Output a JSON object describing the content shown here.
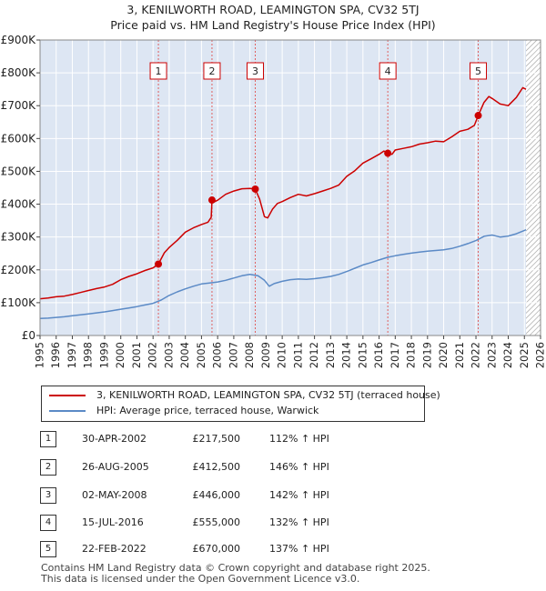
{
  "title_line1": "3, KENILWORTH ROAD, LEAMINGTON SPA, CV32 5TJ",
  "title_line2": "Price paid vs. HM Land Registry's House Price Index (HPI)",
  "colors": {
    "property": "#cc0000",
    "hpi": "#5b8ac6",
    "shade": "#dde6f3",
    "grid": "#ffffff",
    "marker_line": "#e06060",
    "hatch": "#9a9a9a"
  },
  "legend": {
    "property_label": "3, KENILWORTH ROAD, LEAMINGTON SPA, CV32 5TJ (terraced house)",
    "hpi_label": "HPI: Average price, terraced house, Warwick"
  },
  "sales": [
    {
      "num": "1",
      "date": "30-APR-2002",
      "price": "£217,500",
      "hpi": "112% ↑ HPI"
    },
    {
      "num": "2",
      "date": "26-AUG-2005",
      "price": "£412,500",
      "hpi": "146% ↑ HPI"
    },
    {
      "num": "3",
      "date": "02-MAY-2008",
      "price": "£446,000",
      "hpi": "142% ↑ HPI"
    },
    {
      "num": "4",
      "date": "15-JUL-2016",
      "price": "£555,000",
      "hpi": "132% ↑ HPI"
    },
    {
      "num": "5",
      "date": "22-FEB-2022",
      "price": "£670,000",
      "hpi": "137% ↑ HPI"
    }
  ],
  "footer": {
    "line1": "Contains HM Land Registry data © Crown copyright and database right 2025.",
    "line2": "This data is licensed under the Open Government Licence v3.0."
  },
  "chart_data": {
    "type": "line",
    "title": "3, KENILWORTH ROAD, LEAMINGTON SPA, CV32 5TJ — Price paid vs. HM Land Registry's House Price Index (HPI)",
    "xlabel": "",
    "ylabel": "",
    "xlim": [
      1995,
      2026
    ],
    "ylim": [
      0,
      900000
    ],
    "x_ticks": [
      1995,
      1996,
      1997,
      1998,
      1999,
      2000,
      2001,
      2002,
      2003,
      2004,
      2005,
      2006,
      2007,
      2008,
      2009,
      2010,
      2011,
      2012,
      2013,
      2014,
      2015,
      2016,
      2017,
      2018,
      2019,
      2020,
      2021,
      2022,
      2023,
      2024,
      2025,
      2026
    ],
    "y_ticks": [
      {
        "value": 0,
        "label": "£0"
      },
      {
        "value": 100000,
        "label": "£100K"
      },
      {
        "value": 200000,
        "label": "£200K"
      },
      {
        "value": 300000,
        "label": "£300K"
      },
      {
        "value": 400000,
        "label": "£400K"
      },
      {
        "value": 500000,
        "label": "£500K"
      },
      {
        "value": 600000,
        "label": "£600K"
      },
      {
        "value": 700000,
        "label": "£700K"
      },
      {
        "value": 800000,
        "label": "£800K"
      },
      {
        "value": 900000,
        "label": "£900K"
      }
    ],
    "forecast_start": 2025.1,
    "sale_markers": [
      {
        "label": "1",
        "x": 2002.33,
        "y": 217500
      },
      {
        "label": "2",
        "x": 2005.65,
        "y": 412500
      },
      {
        "label": "3",
        "x": 2008.33,
        "y": 446000
      },
      {
        "label": "4",
        "x": 2016.54,
        "y": 555000
      },
      {
        "label": "5",
        "x": 2022.14,
        "y": 670000
      }
    ],
    "series": [
      {
        "name": "3, KENILWORTH ROAD, LEAMINGTON SPA, CV32 5TJ (terraced house)",
        "color": "#cc0000",
        "x": [
          1995.0,
          1995.5,
          1996.0,
          1996.5,
          1997.0,
          1997.5,
          1998.0,
          1998.5,
          1999.0,
          1999.5,
          2000.0,
          2000.5,
          2001.0,
          2001.5,
          2002.0,
          2002.33,
          2002.7,
          2003.0,
          2003.5,
          2004.0,
          2004.5,
          2005.0,
          2005.4,
          2005.6,
          2005.65,
          2005.7,
          2006.0,
          2006.5,
          2007.0,
          2007.5,
          2008.0,
          2008.33,
          2008.6,
          2008.9,
          2009.1,
          2009.4,
          2009.7,
          2010.0,
          2010.5,
          2011.0,
          2011.5,
          2012.0,
          2012.5,
          2013.0,
          2013.5,
          2014.0,
          2014.5,
          2015.0,
          2015.5,
          2016.0,
          2016.3,
          2016.54,
          2016.8,
          2017.0,
          2017.5,
          2018.0,
          2018.5,
          2019.0,
          2019.5,
          2020.0,
          2020.5,
          2021.0,
          2021.5,
          2021.9,
          2022.14,
          2022.5,
          2022.8,
          2023.0,
          2023.5,
          2024.0,
          2024.5,
          2024.9,
          2025.1
        ],
        "values": [
          112000,
          114000,
          118000,
          120000,
          125000,
          131000,
          137000,
          143000,
          148000,
          156000,
          170000,
          180000,
          188000,
          198000,
          206000,
          217500,
          252000,
          268000,
          290000,
          315000,
          328000,
          338000,
          345000,
          360000,
          412500,
          405000,
          412000,
          430000,
          440000,
          447000,
          448000,
          446000,
          415000,
          362000,
          358000,
          385000,
          402000,
          408000,
          420000,
          430000,
          425000,
          432000,
          440000,
          448000,
          458000,
          485000,
          502000,
          525000,
          538000,
          552000,
          562000,
          555000,
          552000,
          565000,
          570000,
          575000,
          583000,
          587000,
          592000,
          590000,
          605000,
          622000,
          628000,
          640000,
          670000,
          710000,
          728000,
          722000,
          705000,
          700000,
          725000,
          755000,
          750000
        ]
      },
      {
        "name": "HPI: Average price, terraced house, Warwick",
        "color": "#5b8ac6",
        "x": [
          1995.0,
          1995.5,
          1996.0,
          1996.5,
          1997.0,
          1997.5,
          1998.0,
          1998.5,
          1999.0,
          1999.5,
          2000.0,
          2000.5,
          2001.0,
          2001.5,
          2002.0,
          2002.5,
          2003.0,
          2003.5,
          2004.0,
          2004.5,
          2005.0,
          2005.5,
          2006.0,
          2006.5,
          2007.0,
          2007.5,
          2008.0,
          2008.5,
          2008.9,
          2009.2,
          2009.5,
          2010.0,
          2010.5,
          2011.0,
          2011.5,
          2012.0,
          2012.5,
          2013.0,
          2013.5,
          2014.0,
          2014.5,
          2015.0,
          2015.5,
          2016.0,
          2016.5,
          2017.0,
          2017.5,
          2018.0,
          2018.5,
          2019.0,
          2019.5,
          2020.0,
          2020.5,
          2021.0,
          2021.5,
          2022.0,
          2022.5,
          2023.0,
          2023.5,
          2024.0,
          2024.5,
          2025.0,
          2025.1
        ],
        "values": [
          52000,
          53000,
          55000,
          57000,
          60000,
          63000,
          66000,
          69000,
          72000,
          76000,
          80000,
          84000,
          88000,
          93000,
          98000,
          108000,
          122000,
          133000,
          142000,
          150000,
          157000,
          160000,
          163000,
          168000,
          175000,
          182000,
          186000,
          182000,
          168000,
          150000,
          158000,
          165000,
          170000,
          172000,
          171000,
          173000,
          176000,
          180000,
          186000,
          195000,
          205000,
          215000,
          222000,
          230000,
          238000,
          243000,
          247000,
          251000,
          254000,
          257000,
          259000,
          261000,
          265000,
          272000,
          280000,
          289000,
          302000,
          306000,
          300000,
          303000,
          310000,
          320000,
          322000
        ]
      }
    ]
  }
}
